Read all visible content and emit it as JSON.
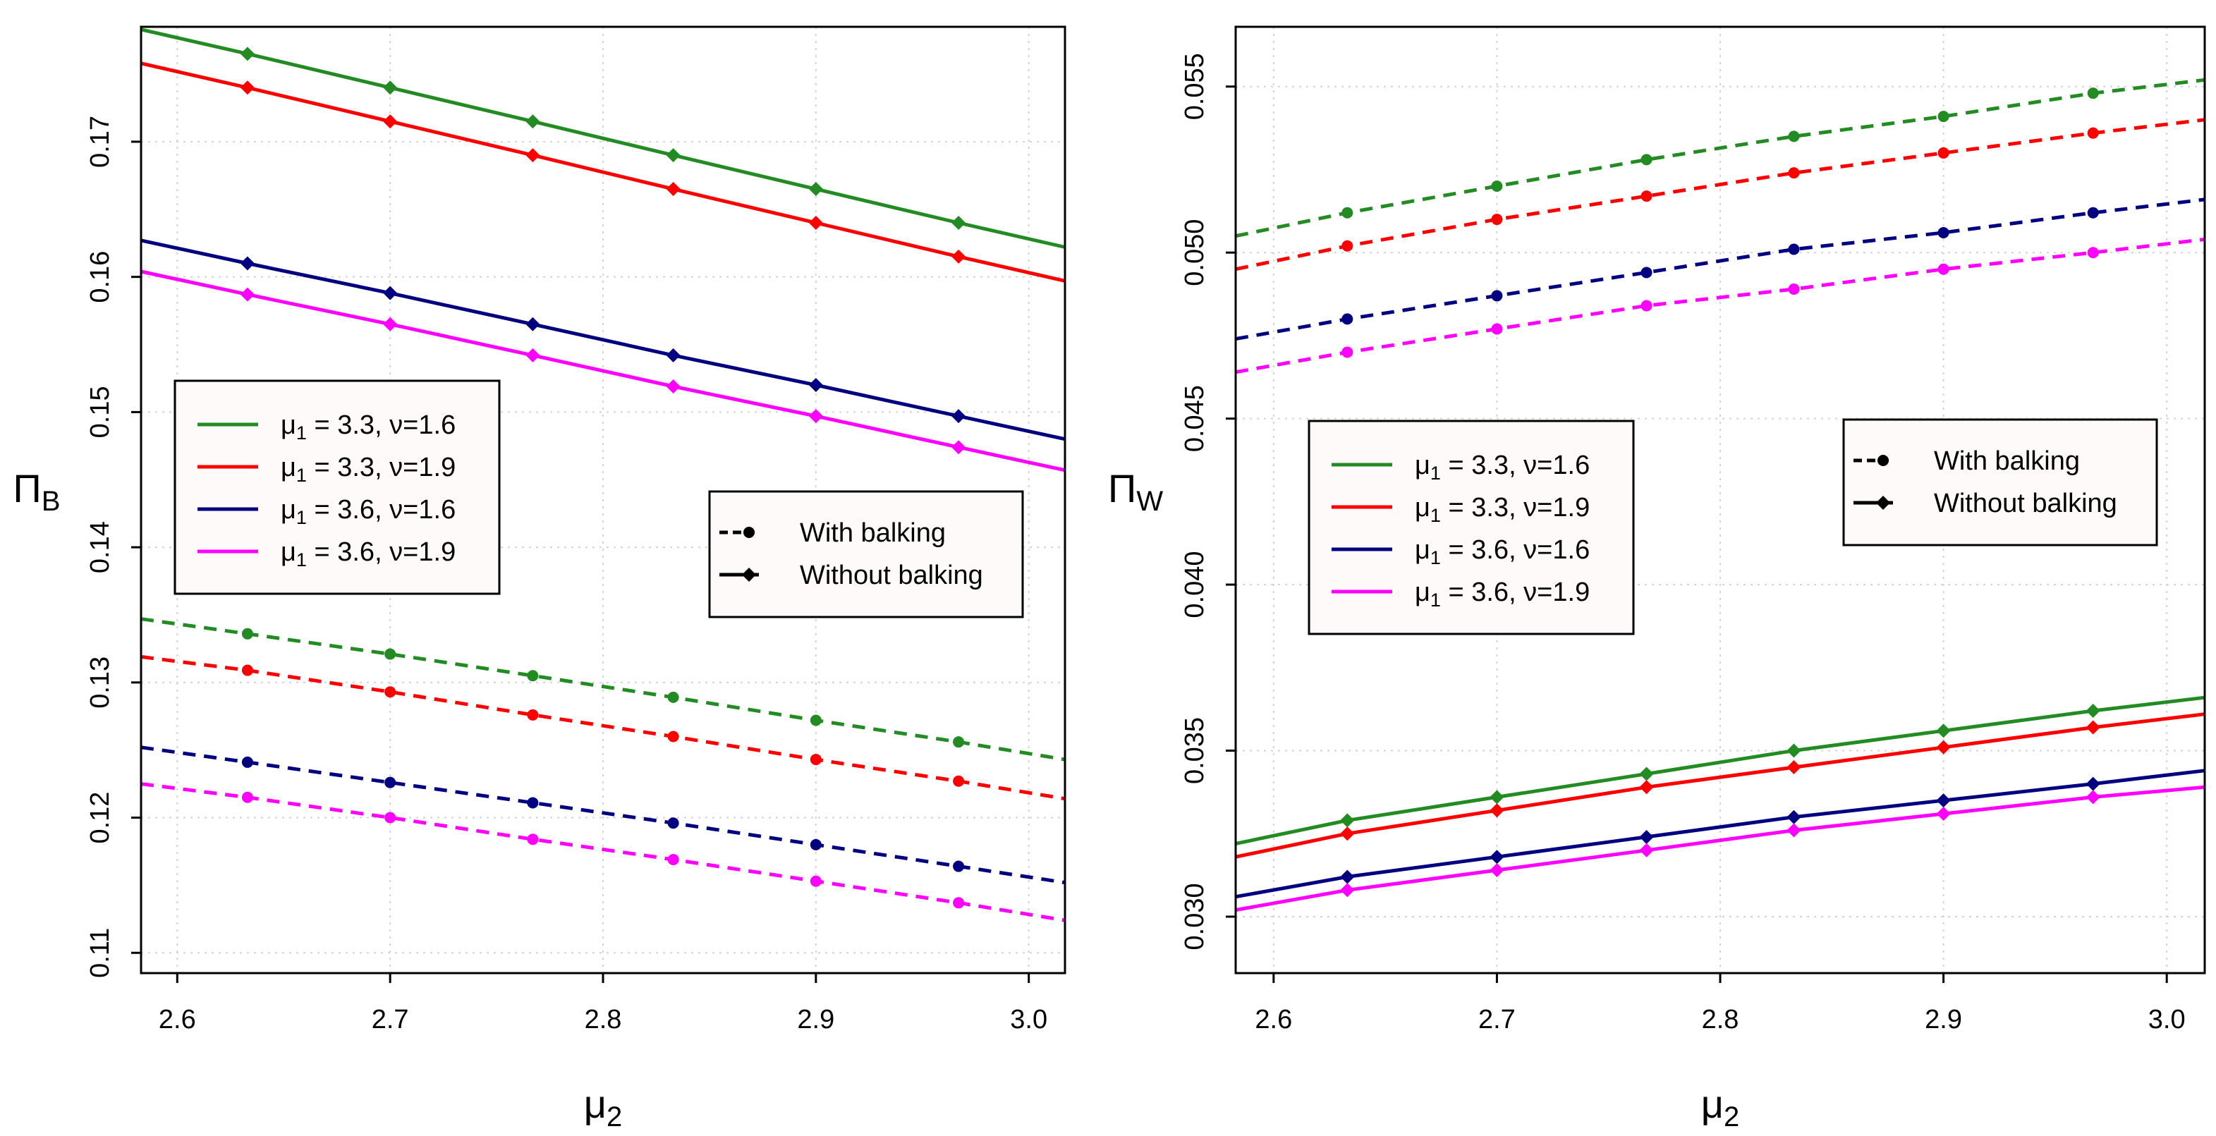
{
  "chart_data": [
    {
      "id": "left",
      "type": "line",
      "title": "",
      "xlabel": "μ2",
      "ylabel": "ΠB",
      "xlim": [
        2.583,
        3.017
      ],
      "ylim": [
        0.1085,
        0.1785
      ],
      "grid": true,
      "xticks": [
        2.6,
        2.7,
        2.8,
        2.9,
        3.0
      ],
      "xtick_labels": [
        "2.6",
        "2.7",
        "2.8",
        "2.9",
        "3.0"
      ],
      "yticks": [
        0.11,
        0.12,
        0.13,
        0.14,
        0.15,
        0.16,
        0.17
      ],
      "ytick_labels": [
        "0.11",
        "0.12",
        "0.13",
        "0.14",
        "0.15",
        "0.16",
        "0.17"
      ],
      "legend_params": {
        "placement": "middle-left",
        "entries": [
          {
            "mu1": "3.3",
            "nu": "1.6",
            "color": "#228b22"
          },
          {
            "mu1": "3.3",
            "nu": "1.9",
            "color": "#ff0000"
          },
          {
            "mu1": "3.6",
            "nu": "1.6",
            "color": "#000080"
          },
          {
            "mu1": "3.6",
            "nu": "1.9",
            "color": "#ff00ff"
          }
        ]
      },
      "legend_style": {
        "placement": "middle-right",
        "entries": [
          {
            "label": "With balking",
            "dash": true,
            "marker": "circle"
          },
          {
            "label": "Without balking",
            "dash": false,
            "marker": "diamond"
          }
        ]
      },
      "series": [
        {
          "name": "μ1=3.3, ν=1.6, Without balking",
          "color": "#228b22",
          "dash": false,
          "marker": "diamond",
          "x": [
            2.583,
            2.633,
            2.7,
            2.767,
            2.833,
            2.9,
            2.967,
            3.017
          ],
          "y": [
            0.1783,
            0.1765,
            0.174,
            0.1715,
            0.169,
            0.1665,
            0.164,
            0.1622
          ]
        },
        {
          "name": "μ1=3.3, ν=1.9, Without balking",
          "color": "#ff0000",
          "dash": false,
          "marker": "diamond",
          "x": [
            2.583,
            2.633,
            2.7,
            2.767,
            2.833,
            2.9,
            2.967,
            3.017
          ],
          "y": [
            0.1758,
            0.174,
            0.1715,
            0.169,
            0.1665,
            0.164,
            0.1615,
            0.1597
          ]
        },
        {
          "name": "μ1=3.6, ν=1.6, Without balking",
          "color": "#000080",
          "dash": false,
          "marker": "diamond",
          "x": [
            2.583,
            2.633,
            2.7,
            2.767,
            2.833,
            2.9,
            2.967,
            3.017
          ],
          "y": [
            0.1627,
            0.161,
            0.1588,
            0.1565,
            0.1542,
            0.152,
            0.1497,
            0.148
          ]
        },
        {
          "name": "μ1=3.6, ν=1.9, Without balking",
          "color": "#ff00ff",
          "dash": false,
          "marker": "diamond",
          "x": [
            2.583,
            2.633,
            2.7,
            2.767,
            2.833,
            2.9,
            2.967,
            3.017
          ],
          "y": [
            0.1604,
            0.1587,
            0.1565,
            0.1542,
            0.1519,
            0.1497,
            0.1474,
            0.1457
          ]
        },
        {
          "name": "μ1=3.3, ν=1.6, With balking",
          "color": "#228b22",
          "dash": true,
          "marker": "circle",
          "x": [
            2.583,
            2.633,
            2.7,
            2.767,
            2.833,
            2.9,
            2.967,
            3.017
          ],
          "y": [
            0.1347,
            0.1336,
            0.1321,
            0.1305,
            0.1289,
            0.1272,
            0.1256,
            0.1243
          ]
        },
        {
          "name": "μ1=3.3, ν=1.9, With balking",
          "color": "#ff0000",
          "dash": true,
          "marker": "circle",
          "x": [
            2.583,
            2.633,
            2.7,
            2.767,
            2.833,
            2.9,
            2.967,
            3.017
          ],
          "y": [
            0.1319,
            0.1309,
            0.1293,
            0.1276,
            0.126,
            0.1243,
            0.1227,
            0.1214
          ]
        },
        {
          "name": "μ1=3.6, ν=1.6, With balking",
          "color": "#000080",
          "dash": true,
          "marker": "circle",
          "x": [
            2.583,
            2.633,
            2.7,
            2.767,
            2.833,
            2.9,
            2.967,
            3.017
          ],
          "y": [
            0.1252,
            0.1241,
            0.1226,
            0.1211,
            0.1196,
            0.118,
            0.1164,
            0.1152
          ]
        },
        {
          "name": "μ1=3.6, ν=1.9, With balking",
          "color": "#ff00ff",
          "dash": true,
          "marker": "circle",
          "x": [
            2.583,
            2.633,
            2.7,
            2.767,
            2.833,
            2.9,
            2.967,
            3.017
          ],
          "y": [
            0.1225,
            0.1215,
            0.12,
            0.1184,
            0.1169,
            0.1153,
            0.1137,
            0.1124
          ]
        }
      ]
    },
    {
      "id": "right",
      "type": "line",
      "title": "",
      "xlabel": "μ2",
      "ylabel": "ΠW",
      "xlim": [
        2.583,
        3.017
      ],
      "ylim": [
        0.0283,
        0.0568
      ],
      "grid": true,
      "xticks": [
        2.6,
        2.7,
        2.8,
        2.9,
        3.0
      ],
      "xtick_labels": [
        "2.6",
        "2.7",
        "2.8",
        "2.9",
        "3.0"
      ],
      "yticks": [
        0.03,
        0.035,
        0.04,
        0.045,
        0.05,
        0.055
      ],
      "ytick_labels": [
        "0.030",
        "0.035",
        "0.040",
        "0.045",
        "0.050",
        "0.055"
      ],
      "legend_params": {
        "placement": "middle-left",
        "entries": [
          {
            "mu1": "3.3",
            "nu": "1.6",
            "color": "#228b22"
          },
          {
            "mu1": "3.3",
            "nu": "1.9",
            "color": "#ff0000"
          },
          {
            "mu1": "3.6",
            "nu": "1.6",
            "color": "#000080"
          },
          {
            "mu1": "3.6",
            "nu": "1.9",
            "color": "#ff00ff"
          }
        ]
      },
      "legend_style": {
        "placement": "top-right",
        "entries": [
          {
            "label": "With balking",
            "dash": true,
            "marker": "circle"
          },
          {
            "label": "Without balking",
            "dash": false,
            "marker": "diamond"
          }
        ]
      },
      "series": [
        {
          "name": "μ1=3.3, ν=1.6, With balking",
          "color": "#228b22",
          "dash": true,
          "marker": "circle",
          "x": [
            2.583,
            2.633,
            2.7,
            2.767,
            2.833,
            2.9,
            2.967,
            3.017
          ],
          "y": [
            0.0505,
            0.0512,
            0.052,
            0.0528,
            0.0535,
            0.0541,
            0.0548,
            0.0552
          ]
        },
        {
          "name": "μ1=3.3, ν=1.9, With balking",
          "color": "#ff0000",
          "dash": true,
          "marker": "circle",
          "x": [
            2.583,
            2.633,
            2.7,
            2.767,
            2.833,
            2.9,
            2.967,
            3.017
          ],
          "y": [
            0.0495,
            0.0502,
            0.051,
            0.0517,
            0.0524,
            0.053,
            0.0536,
            0.054
          ]
        },
        {
          "name": "μ1=3.6, ν=1.6, With balking",
          "color": "#000080",
          "dash": true,
          "marker": "circle",
          "x": [
            2.583,
            2.633,
            2.7,
            2.767,
            2.833,
            2.9,
            2.967,
            3.017
          ],
          "y": [
            0.0474,
            0.048,
            0.0487,
            0.0494,
            0.0501,
            0.0506,
            0.0512,
            0.0516
          ]
        },
        {
          "name": "μ1=3.6, ν=1.9, With balking",
          "color": "#ff00ff",
          "dash": true,
          "marker": "circle",
          "x": [
            2.583,
            2.633,
            2.7,
            2.767,
            2.833,
            2.9,
            2.967,
            3.017
          ],
          "y": [
            0.0464,
            0.047,
            0.0477,
            0.0484,
            0.0489,
            0.0495,
            0.05,
            0.0504
          ]
        },
        {
          "name": "μ1=3.3, ν=1.6, Without balking",
          "color": "#228b22",
          "dash": false,
          "marker": "diamond",
          "x": [
            2.583,
            2.633,
            2.7,
            2.767,
            2.833,
            2.9,
            2.967,
            3.017
          ],
          "y": [
            0.0322,
            0.0329,
            0.0336,
            0.0343,
            0.035,
            0.0356,
            0.0362,
            0.0366
          ]
        },
        {
          "name": "μ1=3.3, ν=1.9, Without balking",
          "color": "#ff0000",
          "dash": false,
          "marker": "diamond",
          "x": [
            2.583,
            2.633,
            2.7,
            2.767,
            2.833,
            2.9,
            2.967,
            3.017
          ],
          "y": [
            0.0318,
            0.0325,
            0.0332,
            0.0339,
            0.0345,
            0.0351,
            0.0357,
            0.0361
          ]
        },
        {
          "name": "μ1=3.6, ν=1.6, Without balking",
          "color": "#000080",
          "dash": false,
          "marker": "diamond",
          "x": [
            2.583,
            2.633,
            2.7,
            2.767,
            2.833,
            2.9,
            2.967,
            3.017
          ],
          "y": [
            0.0306,
            0.0312,
            0.0318,
            0.0324,
            0.033,
            0.0335,
            0.034,
            0.0344
          ]
        },
        {
          "name": "μ1=3.6, ν=1.9, Without balking",
          "color": "#ff00ff",
          "dash": false,
          "marker": "diamond",
          "x": [
            2.583,
            2.633,
            2.7,
            2.767,
            2.833,
            2.9,
            2.967,
            3.017
          ],
          "y": [
            0.0302,
            0.0308,
            0.0314,
            0.032,
            0.0326,
            0.0331,
            0.0336,
            0.0339
          ]
        }
      ]
    }
  ]
}
